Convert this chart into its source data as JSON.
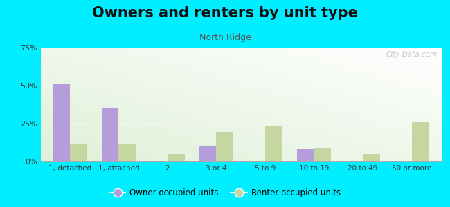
{
  "title": "Owners and renters by unit type",
  "subtitle": "North Ridge",
  "categories": [
    "1, detached",
    "1, attached",
    "2",
    "3 or 4",
    "5 to 9",
    "10 to 19",
    "20 to 49",
    "50 or more"
  ],
  "owner_values": [
    51,
    35,
    0,
    10,
    0,
    8,
    0,
    0
  ],
  "renter_values": [
    12,
    12,
    5,
    19,
    23,
    9,
    5,
    26
  ],
  "owner_color": "#b39ddb",
  "renter_color": "#c5d6a0",
  "background_outer": "#00eeff",
  "ylim": [
    0,
    75
  ],
  "yticks": [
    0,
    25,
    50,
    75
  ],
  "yticklabels": [
    "0%",
    "25%",
    "50%",
    "75%"
  ],
  "bar_width": 0.35,
  "legend_owner": "Owner occupied units",
  "legend_renter": "Renter occupied units",
  "title_fontsize": 15,
  "subtitle_fontsize": 9,
  "watermark": "City-Data.com"
}
